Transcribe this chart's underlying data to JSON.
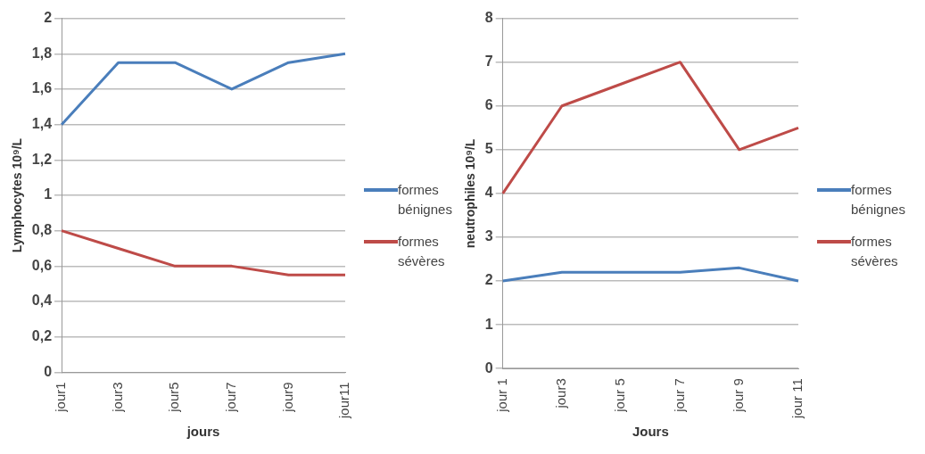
{
  "chart_data": [
    {
      "type": "line",
      "xlabel": "jours",
      "ylabel": "Lymphocytes 10⁹/L",
      "categories": [
        "jour1",
        "jour3",
        "jour5",
        "jour7",
        "jour9",
        "jour11"
      ],
      "series": [
        {
          "name": "formes bénignes",
          "color": "#4a7ebb",
          "values": [
            1.4,
            1.75,
            1.75,
            1.6,
            1.75,
            1.8
          ]
        },
        {
          "name": "formes sévères",
          "color": "#be4b48",
          "values": [
            0.8,
            0.7,
            0.6,
            0.6,
            0.55,
            0.55
          ]
        }
      ],
      "ylim": [
        0,
        2
      ],
      "yticks": [
        0,
        {
          "value": 0.2,
          "label": "0,2"
        },
        {
          "value": 0.4,
          "label": "0,4"
        },
        {
          "value": 0.6,
          "label": "0,6"
        },
        {
          "value": 0.8,
          "label": "0,8"
        },
        1,
        {
          "value": 1.2,
          "label": "1,2"
        },
        {
          "value": 1.4,
          "label": "1,4"
        },
        {
          "value": 1.6,
          "label": "1,6"
        },
        {
          "value": 1.8,
          "label": "1,8"
        },
        2
      ],
      "grid": "y",
      "legend": "right",
      "marker": "none",
      "line_style": "solid"
    },
    {
      "type": "line",
      "xlabel": "Jours",
      "ylabel": "neutrophiles 10⁹/L",
      "categories": [
        "jour 1",
        "jour3",
        "jour 5",
        "jour 7",
        "jour 9",
        "jour 11"
      ],
      "series": [
        {
          "name": "formes bénignes",
          "color": "#4a7ebb",
          "values": [
            2,
            2.2,
            2.2,
            2.2,
            2.3,
            2
          ]
        },
        {
          "name": "formes sévères",
          "color": "#be4b48",
          "values": [
            4,
            6,
            6.5,
            7,
            5,
            5.5
          ]
        }
      ],
      "ylim": [
        0,
        8
      ],
      "yticks": [
        0,
        1,
        2,
        3,
        4,
        5,
        6,
        7,
        8
      ],
      "grid": "y",
      "legend": "right",
      "marker": "none",
      "line_style": "solid"
    }
  ]
}
